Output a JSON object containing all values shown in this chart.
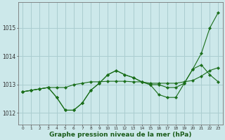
{
  "background_color": "#cce8ea",
  "grid_color": "#aacdd0",
  "line_color": "#1a6e1a",
  "marker_color": "#1a6e1a",
  "title": "Graphe pression niveau de la mer (hPa)",
  "title_fontsize": 6.5,
  "xlim": [
    -0.5,
    23.5
  ],
  "ylim": [
    1011.6,
    1015.9
  ],
  "yticks": [
    1012,
    1013,
    1014,
    1015
  ],
  "xticks": [
    0,
    1,
    2,
    3,
    4,
    5,
    6,
    7,
    8,
    9,
    10,
    11,
    12,
    13,
    14,
    15,
    16,
    17,
    18,
    19,
    20,
    21,
    22,
    23
  ],
  "s1": [
    1012.75,
    1012.8,
    1012.85,
    1012.9,
    1012.55,
    1012.1,
    1012.1,
    1012.35,
    1012.8,
    1013.05,
    1013.35,
    1013.5,
    1013.35,
    1013.25,
    1013.1,
    1013.0,
    1012.65,
    1012.55,
    1012.55,
    1013.05,
    1013.55,
    1014.1,
    1015.0,
    1015.55
  ],
  "s2": [
    1012.75,
    1012.8,
    1012.85,
    1012.9,
    1012.55,
    1012.1,
    1012.1,
    1012.35,
    1012.8,
    1013.05,
    1013.35,
    1013.5,
    1013.35,
    1013.25,
    1013.1,
    1013.0,
    1013.0,
    1012.9,
    1012.9,
    1013.05,
    1013.55,
    1013.7,
    1013.35,
    1013.1
  ],
  "s3": [
    1012.75,
    1012.8,
    1012.85,
    1012.9,
    1012.9,
    1012.9,
    1013.0,
    1013.05,
    1013.1,
    1013.1,
    1013.12,
    1013.12,
    1013.12,
    1013.1,
    1013.1,
    1013.05,
    1013.05,
    1013.05,
    1013.05,
    1013.1,
    1013.15,
    1013.3,
    1013.5,
    1013.6
  ]
}
